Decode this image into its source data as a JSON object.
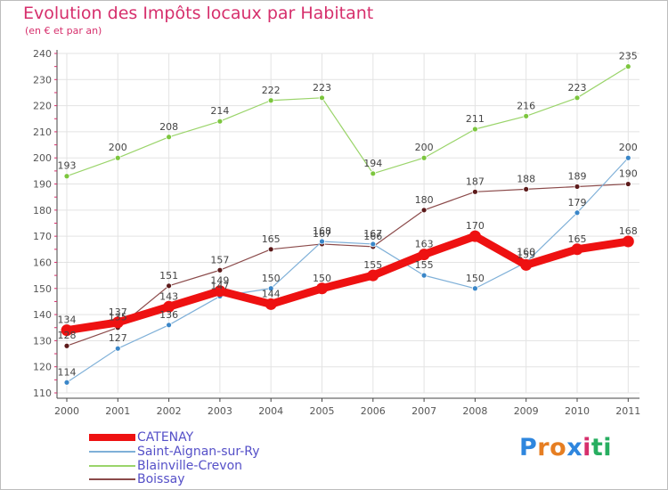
{
  "title": "Evolution des Impôts locaux par Habitant",
  "subtitle": "(en € et par an)",
  "brand": {
    "text": "Proxiti",
    "letters": [
      "P",
      "r",
      "o",
      "x",
      "i",
      "t",
      "i"
    ],
    "colors": [
      "#2e86de",
      "#e67e22",
      "#e67e22",
      "#2e86de",
      "#d62f6c",
      "#27ae60",
      "#27ae60"
    ]
  },
  "chart_data": {
    "type": "line",
    "title": "Evolution des Impôts locaux par Habitant",
    "subtitle": "(en € et par an)",
    "xlabel": "",
    "ylabel": "",
    "ylim": [
      110,
      240
    ],
    "yticks": [
      110,
      120,
      130,
      140,
      150,
      160,
      170,
      180,
      190,
      200,
      210,
      220,
      230,
      240
    ],
    "categories": [
      "2000",
      "2001",
      "2002",
      "2003",
      "2004",
      "2005",
      "2006",
      "2007",
      "2008",
      "2009",
      "2010",
      "2011"
    ],
    "grid": true,
    "series": [
      {
        "name": "CATENAY",
        "color": "#ee1111",
        "marker": "#ee1111",
        "width": 9,
        "radius": 6.5,
        "values": [
          134,
          137,
          143,
          149,
          144,
          150,
          155,
          163,
          170,
          159,
          165,
          168
        ]
      },
      {
        "name": "Saint-Aignan-sur-Ry",
        "color": "#7fb0d8",
        "marker": "#3a86c8",
        "width": 1.2,
        "radius": 3,
        "values": [
          114,
          127,
          136,
          147,
          150,
          168,
          167,
          155,
          150,
          160,
          179,
          200
        ]
      },
      {
        "name": "Blainville-Crevon",
        "color": "#9ad46a",
        "marker": "#7cc63e",
        "width": 1.2,
        "radius": 3,
        "values": [
          193,
          200,
          208,
          214,
          222,
          223,
          194,
          200,
          211,
          216,
          223,
          235
        ]
      },
      {
        "name": "Boissay",
        "color": "#8b4a4a",
        "marker": "#5c1a1a",
        "width": 1.2,
        "radius": 3,
        "values": [
          128,
          135,
          151,
          157,
          165,
          167,
          166,
          180,
          187,
          188,
          189,
          190
        ]
      }
    ],
    "legend_position": "bottom-left"
  }
}
